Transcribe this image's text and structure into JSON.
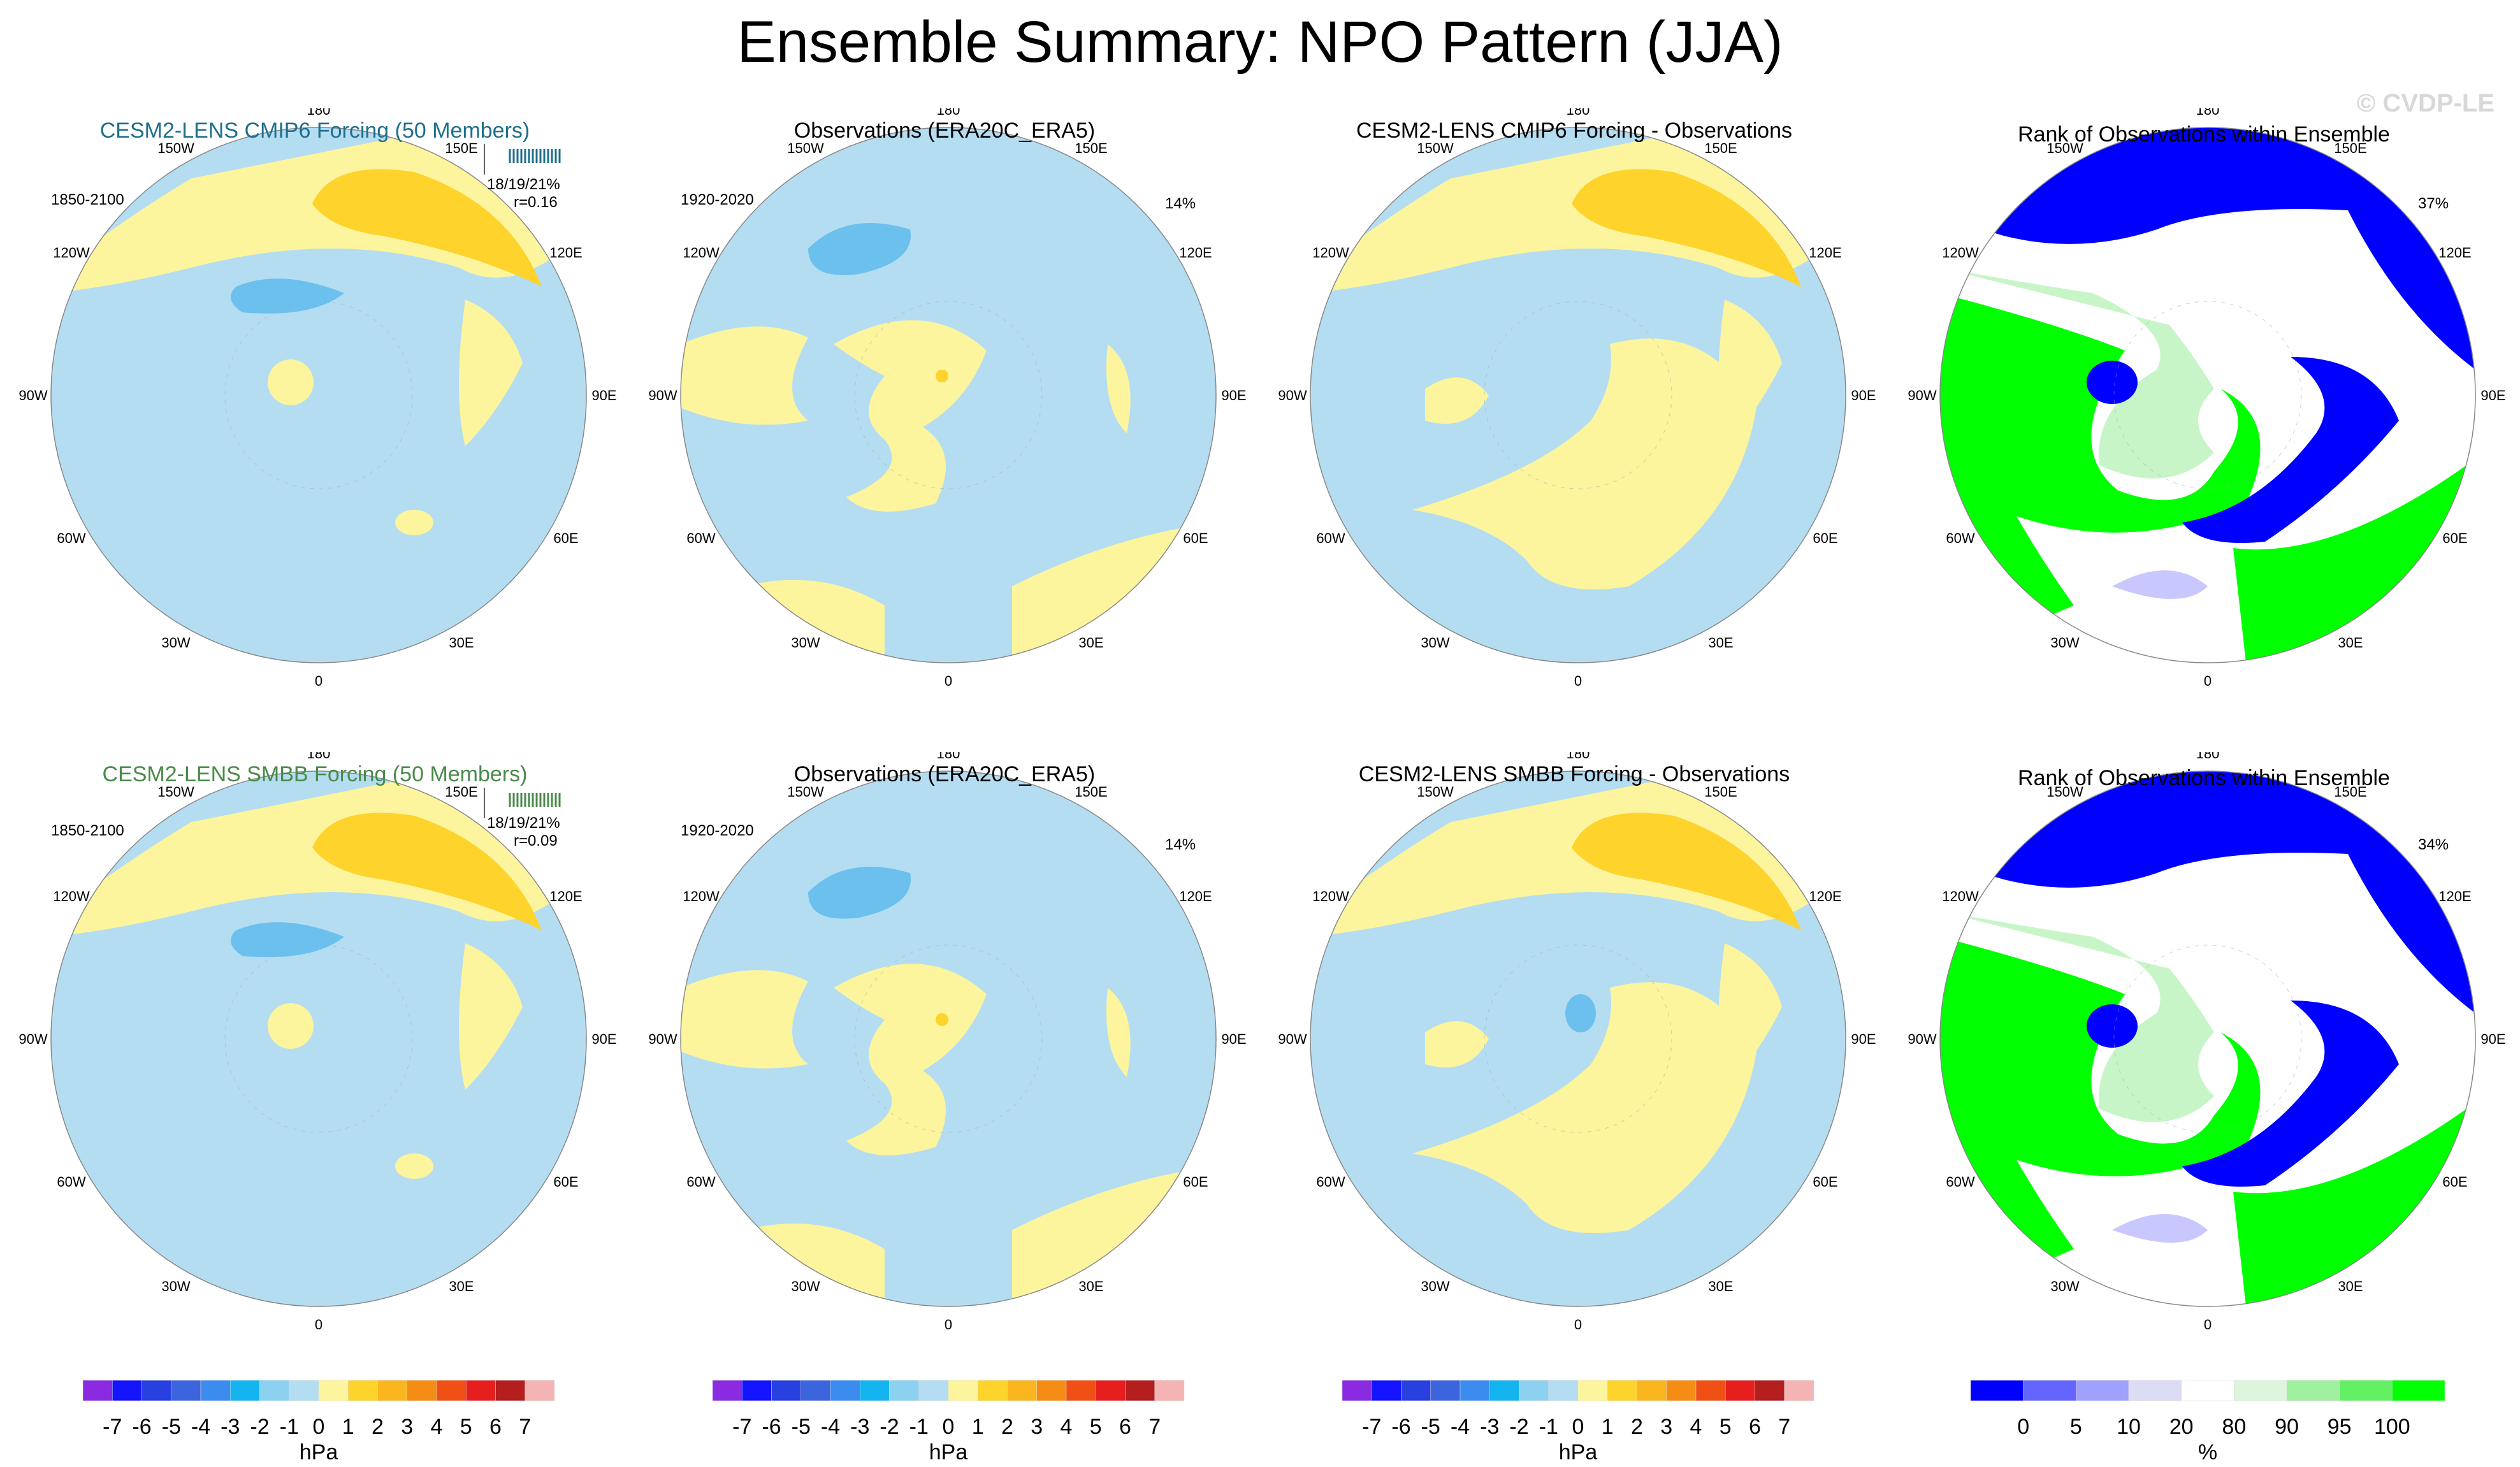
{
  "title": "Ensemble Summary: NPO Pattern (JJA)",
  "watermark": "© CVDP-LE",
  "colors": {
    "neg1": "#b4ddf2",
    "neg2": "#6cc0ee",
    "pos1": "#fdf49e",
    "pos2": "#fdd32c",
    "pos3": "#fab51f",
    "blue": "#0000ff",
    "lightblue": "#c8c8ff",
    "green": "#00ff00",
    "lightgreen": "#c8f5c8",
    "title_cmip6": "#1e6e8c",
    "title_smbb": "#4a8a4a"
  },
  "lon_labels": [
    "180",
    "150E",
    "120E",
    "90E",
    "60E",
    "30E",
    "0",
    "30W",
    "60W",
    "90W",
    "120W",
    "150W"
  ],
  "panels": [
    {
      "id": "r1c1",
      "title": "CESM2-LENS CMIP6 Forcing (50 Members)",
      "title_color": "title_cmip6",
      "period": "1850-2100",
      "summary1": "18/19/21%",
      "summary2": "r=0.16",
      "has_strip": true,
      "kind": "ens"
    },
    {
      "id": "r1c2",
      "title": "Observations (ERA20C_ERA5)",
      "title_color": "",
      "period": "1920-2020",
      "pct": "14%",
      "kind": "obs"
    },
    {
      "id": "r1c3",
      "title": "CESM2-LENS CMIP6 Forcing - Observations",
      "title_color": "",
      "kind": "diff"
    },
    {
      "id": "r1c4",
      "title": "Rank of Observations within Ensemble",
      "title_color": "",
      "pct": "37%",
      "kind": "rank"
    },
    {
      "id": "r2c1",
      "title": "CESM2-LENS SMBB Forcing (50 Members)",
      "title_color": "title_smbb",
      "period": "1850-2100",
      "summary1": "18/19/21%",
      "summary2": "r=0.09",
      "has_strip": true,
      "kind": "ens"
    },
    {
      "id": "r2c2",
      "title": "Observations (ERA20C_ERA5)",
      "title_color": "",
      "period": "1920-2020",
      "pct": "14%",
      "kind": "obs"
    },
    {
      "id": "r2c3",
      "title": "CESM2-LENS SMBB Forcing - Observations",
      "title_color": "",
      "kind": "diff"
    },
    {
      "id": "r2c4",
      "title": "Rank of Observations within Ensemble",
      "title_color": "",
      "pct": "34%",
      "kind": "rank"
    }
  ],
  "colorbars": [
    {
      "unit": "hPa",
      "labels": [
        "-7",
        "-6",
        "-5",
        "-4",
        "-3",
        "-2",
        "-1",
        "0",
        "1",
        "2",
        "3",
        "4",
        "5",
        "6",
        "7"
      ],
      "colors": [
        "#8a2be2",
        "#1414ff",
        "#2840e0",
        "#3c64dc",
        "#3c8cf0",
        "#14b4f0",
        "#8cd2f0",
        "#b4ddf2",
        "#fdf49e",
        "#fdd32c",
        "#fab51f",
        "#f58c14",
        "#f05014",
        "#e61e1e",
        "#b41e1e",
        "#f4b4b4"
      ]
    },
    {
      "unit": "hPa",
      "labels": [
        "-7",
        "-6",
        "-5",
        "-4",
        "-3",
        "-2",
        "-1",
        "0",
        "1",
        "2",
        "3",
        "4",
        "5",
        "6",
        "7"
      ],
      "colors": [
        "#8a2be2",
        "#1414ff",
        "#2840e0",
        "#3c64dc",
        "#3c8cf0",
        "#14b4f0",
        "#8cd2f0",
        "#b4ddf2",
        "#fdf49e",
        "#fdd32c",
        "#fab51f",
        "#f58c14",
        "#f05014",
        "#e61e1e",
        "#b41e1e",
        "#f4b4b4"
      ]
    },
    {
      "unit": "hPa",
      "labels": [
        "-7",
        "-6",
        "-5",
        "-4",
        "-3",
        "-2",
        "-1",
        "0",
        "1",
        "2",
        "3",
        "4",
        "5",
        "6",
        "7"
      ],
      "colors": [
        "#8a2be2",
        "#1414ff",
        "#2840e0",
        "#3c64dc",
        "#3c8cf0",
        "#14b4f0",
        "#8cd2f0",
        "#b4ddf2",
        "#fdf49e",
        "#fdd32c",
        "#fab51f",
        "#f58c14",
        "#f05014",
        "#e61e1e",
        "#b41e1e",
        "#f4b4b4"
      ]
    },
    {
      "unit": "%",
      "labels": [
        "0",
        "5",
        "10",
        "20",
        "80",
        "90",
        "95",
        "100"
      ],
      "colors": [
        "#0000ff",
        "#6464ff",
        "#a0a0ff",
        "#dcdcf5",
        "#ffffff",
        "#dcf5dc",
        "#a0f0a0",
        "#64f064",
        "#00ff00"
      ]
    }
  ],
  "chart_data": {
    "type": "map",
    "title": "Ensemble Summary: NPO Pattern (JJA)",
    "projection": "North polar stereographic",
    "variable": "Sea level pressure pattern",
    "units": "hPa",
    "rank_units": "%",
    "contour_levels_hPa": [
      -7,
      -6,
      -5,
      -4,
      -3,
      -2,
      -1,
      0,
      1,
      2,
      3,
      4,
      5,
      6,
      7
    ],
    "rank_levels_pct": [
      0,
      5,
      10,
      20,
      80,
      90,
      95,
      100
    ],
    "panels": [
      {
        "row": 1,
        "col": 1,
        "title": "CESM2-LENS CMIP6 Forcing (50 Members)",
        "period": "1850-2100",
        "summary": "18/19/21%",
        "pattern_correlation": 0.16
      },
      {
        "row": 1,
        "col": 2,
        "title": "Observations (ERA20C_ERA5)",
        "period": "1920-2020",
        "variance_explained_pct": 14
      },
      {
        "row": 1,
        "col": 3,
        "title": "CESM2-LENS CMIP6 Forcing - Observations"
      },
      {
        "row": 1,
        "col": 4,
        "title": "Rank of Observations within Ensemble",
        "value_pct": 37
      },
      {
        "row": 2,
        "col": 1,
        "title": "CESM2-LENS SMBB Forcing (50 Members)",
        "period": "1850-2100",
        "summary": "18/19/21%",
        "pattern_correlation": 0.09
      },
      {
        "row": 2,
        "col": 2,
        "title": "Observations (ERA20C_ERA5)",
        "period": "1920-2020",
        "variance_explained_pct": 14
      },
      {
        "row": 2,
        "col": 3,
        "title": "CESM2-LENS SMBB Forcing - Observations"
      },
      {
        "row": 2,
        "col": 4,
        "title": "Rank of Observations within Ensemble",
        "value_pct": 34
      }
    ]
  }
}
